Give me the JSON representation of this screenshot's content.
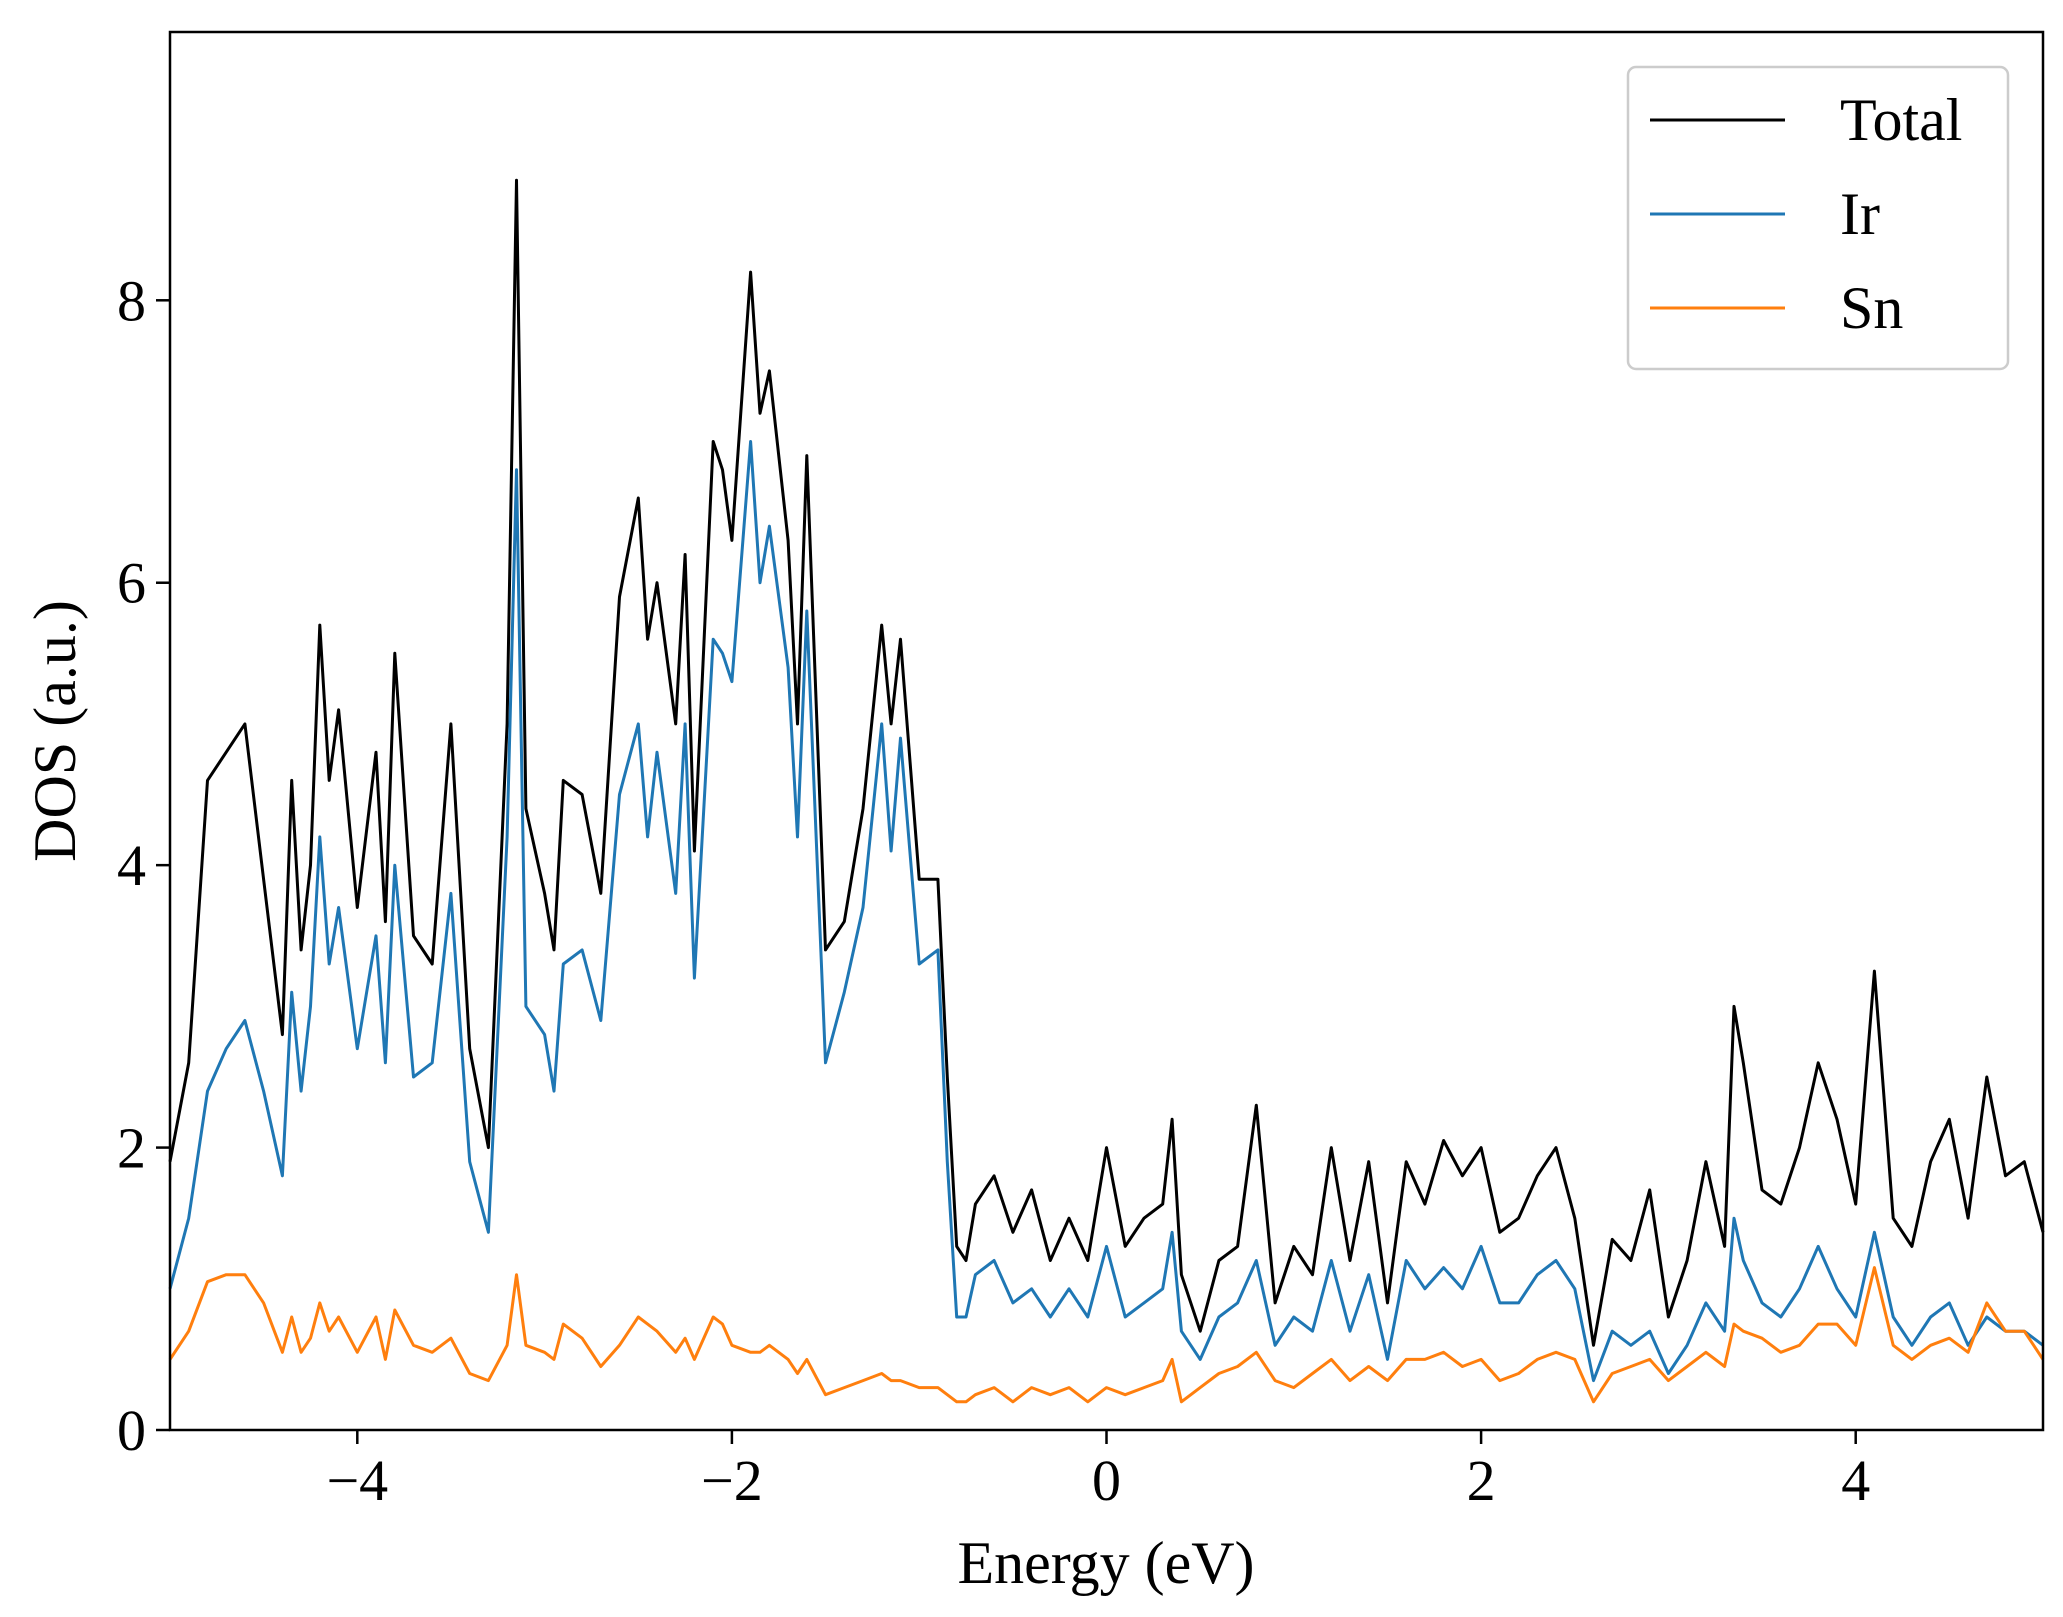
{
  "chart_data": {
    "type": "line",
    "xlabel": "Energy (eV)",
    "ylabel": "DOS (a.u.)",
    "xlim": [
      -5,
      5
    ],
    "ylim": [
      0,
      9.9
    ],
    "x_ticks": [
      -4,
      -2,
      0,
      2,
      4
    ],
    "x_tick_labels": [
      "−4",
      "−2",
      "0",
      "2",
      "4"
    ],
    "y_ticks": [
      0,
      2,
      4,
      6,
      8
    ],
    "y_tick_labels": [
      "0",
      "2",
      "4",
      "6",
      "8"
    ],
    "grid": false,
    "legend_position": "top-right",
    "x": [
      -5.0,
      -4.9,
      -4.8,
      -4.7,
      -4.6,
      -4.5,
      -4.4,
      -4.35,
      -4.3,
      -4.25,
      -4.2,
      -4.15,
      -4.1,
      -4.0,
      -3.9,
      -3.85,
      -3.8,
      -3.7,
      -3.6,
      -3.5,
      -3.4,
      -3.3,
      -3.2,
      -3.15,
      -3.1,
      -3.0,
      -2.95,
      -2.9,
      -2.8,
      -2.7,
      -2.6,
      -2.5,
      -2.45,
      -2.4,
      -2.3,
      -2.25,
      -2.2,
      -2.1,
      -2.05,
      -2.0,
      -1.9,
      -1.85,
      -1.8,
      -1.7,
      -1.65,
      -1.6,
      -1.5,
      -1.4,
      -1.3,
      -1.2,
      -1.15,
      -1.1,
      -1.0,
      -0.9,
      -0.85,
      -0.8,
      -0.75,
      -0.7,
      -0.6,
      -0.5,
      -0.4,
      -0.3,
      -0.2,
      -0.1,
      0.0,
      0.1,
      0.2,
      0.3,
      0.35,
      0.4,
      0.5,
      0.6,
      0.7,
      0.8,
      0.9,
      1.0,
      1.1,
      1.2,
      1.3,
      1.4,
      1.5,
      1.6,
      1.7,
      1.8,
      1.9,
      2.0,
      2.1,
      2.2,
      2.3,
      2.4,
      2.5,
      2.6,
      2.7,
      2.8,
      2.9,
      3.0,
      3.1,
      3.2,
      3.3,
      3.35,
      3.4,
      3.5,
      3.6,
      3.7,
      3.8,
      3.9,
      4.0,
      4.1,
      4.2,
      4.3,
      4.4,
      4.5,
      4.6,
      4.7,
      4.8,
      4.9,
      5.0
    ],
    "series": [
      {
        "name": "Total",
        "color": "#000000",
        "values": [
          1.9,
          2.6,
          4.6,
          4.8,
          5.0,
          3.9,
          2.8,
          4.6,
          3.4,
          4.0,
          5.7,
          4.6,
          5.1,
          3.7,
          4.8,
          3.6,
          5.5,
          3.5,
          3.3,
          5.0,
          2.7,
          2.0,
          5.0,
          8.85,
          4.4,
          3.8,
          3.4,
          4.6,
          4.5,
          3.8,
          5.9,
          6.6,
          5.6,
          6.0,
          5.0,
          6.2,
          4.1,
          7.0,
          6.8,
          6.3,
          8.2,
          7.2,
          7.5,
          6.3,
          5.0,
          6.9,
          3.4,
          3.6,
          4.4,
          5.7,
          5.0,
          5.6,
          3.9,
          3.9,
          2.5,
          1.3,
          1.2,
          1.6,
          1.8,
          1.4,
          1.7,
          1.2,
          1.5,
          1.2,
          2.0,
          1.3,
          1.5,
          1.6,
          2.2,
          1.1,
          0.7,
          1.2,
          1.3,
          2.3,
          0.9,
          1.3,
          1.1,
          2.0,
          1.2,
          1.9,
          0.9,
          1.9,
          1.6,
          2.05,
          1.8,
          2.0,
          1.4,
          1.5,
          1.8,
          2.0,
          1.5,
          0.6,
          1.35,
          1.2,
          1.7,
          0.8,
          1.2,
          1.9,
          1.3,
          3.0,
          2.6,
          1.7,
          1.6,
          2.0,
          2.6,
          2.2,
          1.6,
          3.25,
          1.5,
          1.3,
          1.9,
          2.2,
          1.5,
          2.5,
          1.8,
          1.9,
          1.4
        ]
      },
      {
        "name": "Ir",
        "color": "#1f77b4",
        "values": [
          1.0,
          1.5,
          2.4,
          2.7,
          2.9,
          2.4,
          1.8,
          3.1,
          2.4,
          3.0,
          4.2,
          3.3,
          3.7,
          2.7,
          3.5,
          2.6,
          4.0,
          2.5,
          2.6,
          3.8,
          1.9,
          1.4,
          4.2,
          6.8,
          3.0,
          2.8,
          2.4,
          3.3,
          3.4,
          2.9,
          4.5,
          5.0,
          4.2,
          4.8,
          3.8,
          5.0,
          3.2,
          5.6,
          5.5,
          5.3,
          7.0,
          6.0,
          6.4,
          5.4,
          4.2,
          5.8,
          2.6,
          3.1,
          3.7,
          5.0,
          4.1,
          4.9,
          3.3,
          3.4,
          1.9,
          0.8,
          0.8,
          1.1,
          1.2,
          0.9,
          1.0,
          0.8,
          1.0,
          0.8,
          1.3,
          0.8,
          0.9,
          1.0,
          1.4,
          0.7,
          0.5,
          0.8,
          0.9,
          1.2,
          0.6,
          0.8,
          0.7,
          1.2,
          0.7,
          1.1,
          0.5,
          1.2,
          1.0,
          1.15,
          1.0,
          1.3,
          0.9,
          0.9,
          1.1,
          1.2,
          1.0,
          0.35,
          0.7,
          0.6,
          0.7,
          0.4,
          0.6,
          0.9,
          0.7,
          1.5,
          1.2,
          0.9,
          0.8,
          1.0,
          1.3,
          1.0,
          0.8,
          1.4,
          0.8,
          0.6,
          0.8,
          0.9,
          0.6,
          0.8,
          0.7,
          0.7,
          0.6
        ]
      },
      {
        "name": "Sn",
        "color": "#ff7f0e",
        "values": [
          0.5,
          0.7,
          1.05,
          1.1,
          1.1,
          0.9,
          0.55,
          0.8,
          0.55,
          0.65,
          0.9,
          0.7,
          0.8,
          0.55,
          0.8,
          0.5,
          0.85,
          0.6,
          0.55,
          0.65,
          0.4,
          0.35,
          0.6,
          1.1,
          0.6,
          0.55,
          0.5,
          0.75,
          0.65,
          0.45,
          0.6,
          0.8,
          0.75,
          0.7,
          0.55,
          0.65,
          0.5,
          0.8,
          0.75,
          0.6,
          0.55,
          0.55,
          0.6,
          0.5,
          0.4,
          0.5,
          0.25,
          0.3,
          0.35,
          0.4,
          0.35,
          0.35,
          0.3,
          0.3,
          0.25,
          0.2,
          0.2,
          0.25,
          0.3,
          0.2,
          0.3,
          0.25,
          0.3,
          0.2,
          0.3,
          0.25,
          0.3,
          0.35,
          0.5,
          0.2,
          0.3,
          0.4,
          0.45,
          0.55,
          0.35,
          0.3,
          0.4,
          0.5,
          0.35,
          0.45,
          0.35,
          0.5,
          0.5,
          0.55,
          0.45,
          0.5,
          0.35,
          0.4,
          0.5,
          0.55,
          0.5,
          0.2,
          0.4,
          0.45,
          0.5,
          0.35,
          0.45,
          0.55,
          0.45,
          0.75,
          0.7,
          0.65,
          0.55,
          0.6,
          0.75,
          0.75,
          0.6,
          1.15,
          0.6,
          0.5,
          0.6,
          0.65,
          0.55,
          0.9,
          0.7,
          0.7,
          0.5
        ]
      }
    ]
  }
}
